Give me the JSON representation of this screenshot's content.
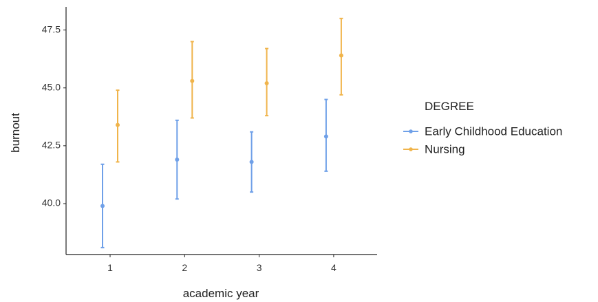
{
  "chart_data": {
    "type": "scatter",
    "subtype": "point-errorbar",
    "xlabel": "academic year",
    "ylabel": "burnout",
    "categories": [
      "1",
      "2",
      "3",
      "4"
    ],
    "ylim": [
      37.8,
      48.5
    ],
    "yticks": [
      "40.0",
      "42.5",
      "45.0",
      "47.5"
    ],
    "grid": false,
    "legend": {
      "title": "DEGREE",
      "position": "right"
    },
    "series": [
      {
        "name": "Early Childhood Education",
        "color": "#6fa0e8",
        "values": [
          39.9,
          41.9,
          41.8,
          42.9
        ],
        "lower": [
          38.1,
          40.2,
          40.5,
          41.4
        ],
        "upper": [
          41.7,
          43.6,
          43.1,
          44.5
        ]
      },
      {
        "name": "Nursing",
        "color": "#f0b44b",
        "values": [
          43.4,
          45.3,
          45.2,
          46.4
        ],
        "lower": [
          41.8,
          43.7,
          43.8,
          44.7
        ],
        "upper": [
          44.9,
          47.0,
          46.7,
          48.0
        ]
      }
    ]
  }
}
